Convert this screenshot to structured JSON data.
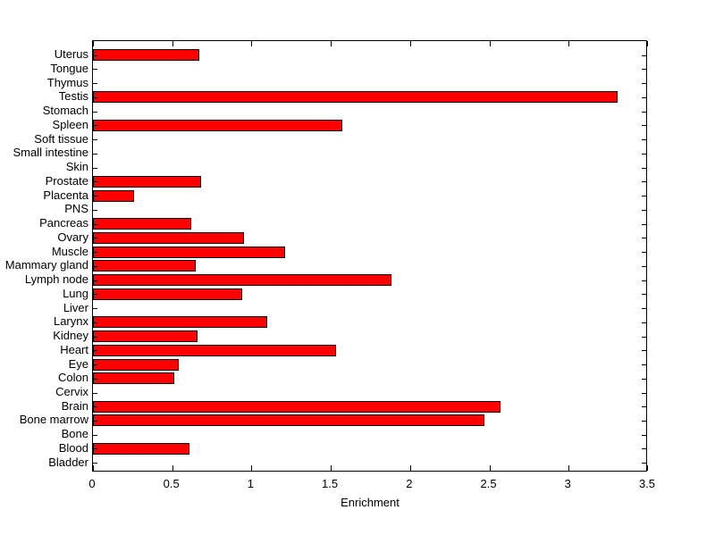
{
  "figure": {
    "background_color": "#ffffff",
    "axis_color": "#000000"
  },
  "chart_data": {
    "type": "bar",
    "orientation": "horizontal",
    "title": "",
    "xlabel": "Enrichment",
    "ylabel": "",
    "xlim": [
      0,
      3.5
    ],
    "xticks": [
      0,
      0.5,
      1,
      1.5,
      2,
      2.5,
      3,
      3.5
    ],
    "xtick_labels": [
      "0",
      "0.5",
      "1",
      "1.5",
      "2",
      "2.5",
      "3",
      "3.5"
    ],
    "grid": false,
    "box": true,
    "legend": "none",
    "bar_color": "#ff0000",
    "bar_edge_color": "#000000",
    "categories_top_to_bottom": [
      "Uterus",
      "Tongue",
      "Thymus",
      "Testis",
      "Stomach",
      "Spleen",
      "Soft tissue",
      "Small intestine",
      "Skin",
      "Prostate",
      "Placenta",
      "PNS",
      "Pancreas",
      "Ovary",
      "Muscle",
      "Mammary gland",
      "Lymph node",
      "Lung",
      "Liver",
      "Larynx",
      "Kidney",
      "Heart",
      "Eye",
      "Colon",
      "Cervix",
      "Brain",
      "Bone marrow",
      "Bone",
      "Blood",
      "Bladder"
    ],
    "values": [
      0.67,
      0,
      0,
      3.31,
      0,
      1.57,
      0,
      0,
      0,
      0.68,
      0.26,
      0,
      0.62,
      0.95,
      1.21,
      0.65,
      1.88,
      0.94,
      0,
      1.1,
      0.66,
      1.53,
      0.54,
      0.51,
      0,
      2.57,
      2.47,
      0,
      0.61,
      0
    ]
  }
}
